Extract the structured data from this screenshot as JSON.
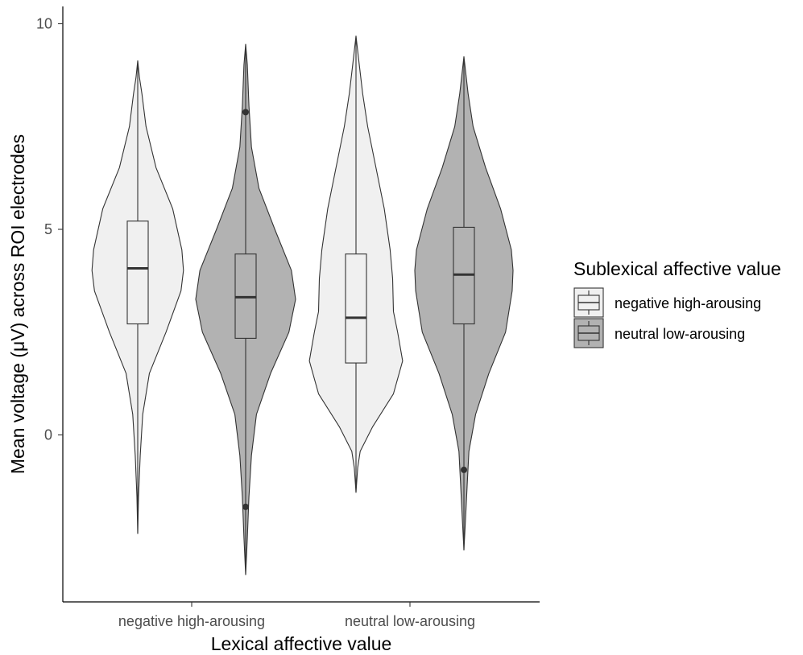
{
  "chart_data": {
    "type": "violin",
    "title": "",
    "xlabel": "Lexical affective value",
    "ylabel": "Mean voltage (μV) across ROI electrodes",
    "ylim": [
      -4.0,
      10.4
    ],
    "yticks": [
      0,
      5,
      10
    ],
    "grid": false,
    "legend": {
      "title": "Sublexical affective value",
      "placement": "right",
      "entries": [
        "negative high-arousing",
        "neutral low-arousing"
      ]
    },
    "categories": [
      "negative high-arousing",
      "neutral low-arousing"
    ],
    "series": [
      {
        "name": "negative high-arousing",
        "color": "#f0f0f0",
        "groups": [
          {
            "category": "negative high-arousing",
            "min": -2.4,
            "q1": 2.7,
            "median": 4.05,
            "q3": 5.2,
            "max": 9.1,
            "whisker_low": 0.5,
            "whisker_high": 7.3,
            "outliers": [],
            "density": [
              [
                -2.4,
                0
              ],
              [
                -1.5,
                0.01
              ],
              [
                -0.5,
                0.03
              ],
              [
                0.5,
                0.06
              ],
              [
                1.5,
                0.14
              ],
              [
                2.5,
                0.34
              ],
              [
                3.5,
                0.52
              ],
              [
                4.0,
                0.55
              ],
              [
                4.5,
                0.53
              ],
              [
                5.5,
                0.42
              ],
              [
                6.5,
                0.22
              ],
              [
                7.5,
                0.1
              ],
              [
                8.3,
                0.05
              ],
              [
                8.7,
                0.02
              ],
              [
                9.1,
                0
              ]
            ]
          },
          {
            "category": "neutral low-arousing",
            "min": -1.4,
            "q1": 1.75,
            "median": 2.85,
            "q3": 4.4,
            "max": 9.7,
            "whisker_low": 0.75,
            "whisker_high": 7.65,
            "outliers": [],
            "density": [
              [
                -1.4,
                0
              ],
              [
                -0.8,
                0.02
              ],
              [
                -0.4,
                0.05
              ],
              [
                0.2,
                0.2
              ],
              [
                1.0,
                0.45
              ],
              [
                1.8,
                0.56
              ],
              [
                2.5,
                0.5
              ],
              [
                3.0,
                0.45
              ],
              [
                3.8,
                0.44
              ],
              [
                4.5,
                0.41
              ],
              [
                5.5,
                0.34
              ],
              [
                6.5,
                0.24
              ],
              [
                7.5,
                0.14
              ],
              [
                8.3,
                0.08
              ],
              [
                9.0,
                0.04
              ],
              [
                9.7,
                0
              ]
            ]
          }
        ]
      },
      {
        "name": "neutral low-arousing",
        "color": "#b2b2b2",
        "groups": [
          {
            "category": "negative high-arousing",
            "min": -3.4,
            "q1": 2.35,
            "median": 3.35,
            "q3": 4.4,
            "max": 9.5,
            "whisker_low": 0.5,
            "whisker_high": 6.4,
            "outliers": [
              7.85,
              -1.75
            ],
            "density": [
              [
                -3.4,
                0
              ],
              [
                -2.5,
                0.02
              ],
              [
                -1.5,
                0.04
              ],
              [
                -0.5,
                0.07
              ],
              [
                0.5,
                0.13
              ],
              [
                1.5,
                0.3
              ],
              [
                2.5,
                0.52
              ],
              [
                3.3,
                0.6
              ],
              [
                4.0,
                0.55
              ],
              [
                5.0,
                0.35
              ],
              [
                6.0,
                0.16
              ],
              [
                7.0,
                0.07
              ],
              [
                8.0,
                0.04
              ],
              [
                9.0,
                0.02
              ],
              [
                9.5,
                0
              ]
            ]
          },
          {
            "category": "neutral low-arousing",
            "min": -2.8,
            "q1": 2.7,
            "median": 3.9,
            "q3": 5.05,
            "max": 9.2,
            "whisker_low": 0.7,
            "whisker_high": 7.35,
            "outliers": [
              -0.85
            ],
            "density": [
              [
                -2.8,
                0
              ],
              [
                -2.0,
                0.02
              ],
              [
                -1.2,
                0.04
              ],
              [
                -0.4,
                0.06
              ],
              [
                0.5,
                0.14
              ],
              [
                1.5,
                0.3
              ],
              [
                2.5,
                0.5
              ],
              [
                3.5,
                0.58
              ],
              [
                4.0,
                0.59
              ],
              [
                4.5,
                0.57
              ],
              [
                5.5,
                0.44
              ],
              [
                6.5,
                0.26
              ],
              [
                7.5,
                0.11
              ],
              [
                8.3,
                0.05
              ],
              [
                9.2,
                0
              ]
            ]
          }
        ]
      }
    ]
  }
}
